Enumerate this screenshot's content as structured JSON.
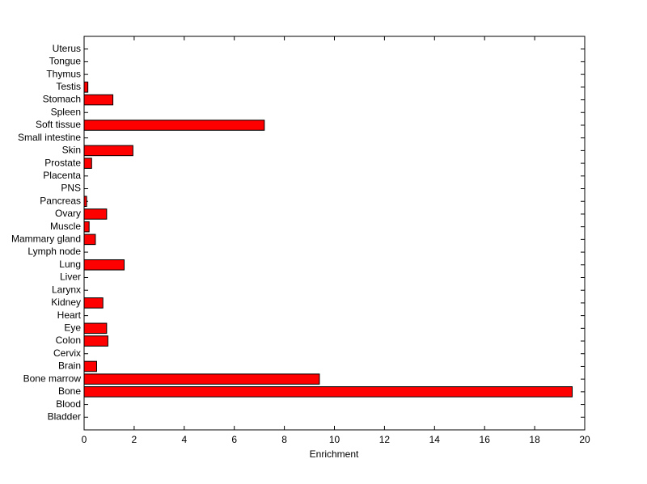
{
  "chart_data": {
    "type": "barh",
    "x_label": "Enrichment",
    "categories": [
      "Bladder",
      "Blood",
      "Bone",
      "Bone marrow",
      "Brain",
      "Cervix",
      "Colon",
      "Eye",
      "Heart",
      "Kidney",
      "Larynx",
      "Liver",
      "Lung",
      "Lymph node",
      "Mammary gland",
      "Muscle",
      "Ovary",
      "Pancreas",
      "PNS",
      "Placenta",
      "Prostate",
      "Skin",
      "Small intestine",
      "Soft tissue",
      "Spleen",
      "Stomach",
      "Testis",
      "Thymus",
      "Tongue",
      "Uterus"
    ],
    "values": [
      0,
      0,
      19.5,
      9.4,
      0.5,
      0,
      0.95,
      0.9,
      0,
      0.75,
      0,
      0,
      1.6,
      0,
      0.45,
      0.2,
      0.9,
      0.1,
      0,
      0,
      0.3,
      1.95,
      0,
      7.2,
      0,
      1.15,
      0.15,
      0,
      0,
      0
    ],
    "color": "#ff0000",
    "xlim": [
      0,
      20
    ],
    "xticks": [
      0,
      2,
      4,
      6,
      8,
      10,
      12,
      14,
      16,
      18,
      20
    ]
  }
}
